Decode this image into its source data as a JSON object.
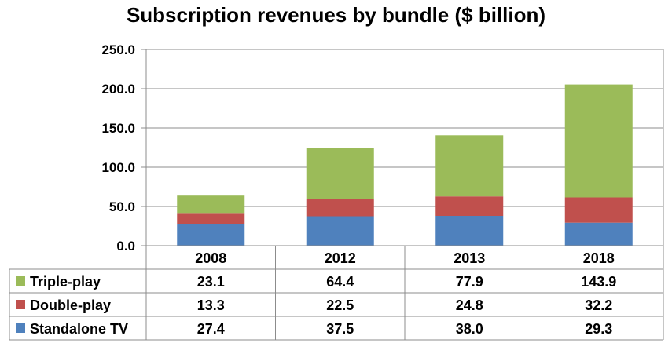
{
  "chart_data": {
    "type": "bar",
    "stacked": true,
    "title": "Subscription revenues by bundle ($ billion)",
    "categories": [
      "2008",
      "2012",
      "2013",
      "2018"
    ],
    "series": [
      {
        "name": "Standalone TV",
        "values": [
          27.4,
          37.5,
          38.0,
          29.3
        ],
        "color": "#4F81BD"
      },
      {
        "name": "Double-play",
        "values": [
          13.3,
          22.5,
          24.8,
          32.2
        ],
        "color": "#C0504D"
      },
      {
        "name": "Triple-play",
        "values": [
          23.1,
          64.4,
          77.9,
          143.9
        ],
        "color": "#9BBB59"
      }
    ],
    "ylim": [
      0,
      250
    ],
    "yticks": [
      "0.0",
      "50.0",
      "100.0",
      "150.0",
      "200.0",
      "250.0"
    ],
    "grid": true,
    "legend": "data-table",
    "table_rows": [
      {
        "series": "Triple-play",
        "values": [
          "23.1",
          "64.4",
          "77.9",
          "143.9"
        ]
      },
      {
        "series": "Double-play",
        "values": [
          "13.3",
          "22.5",
          "24.8",
          "32.2"
        ]
      },
      {
        "series": "Standalone TV",
        "values": [
          "27.4",
          "37.5",
          "38.0",
          "29.3"
        ]
      }
    ]
  }
}
